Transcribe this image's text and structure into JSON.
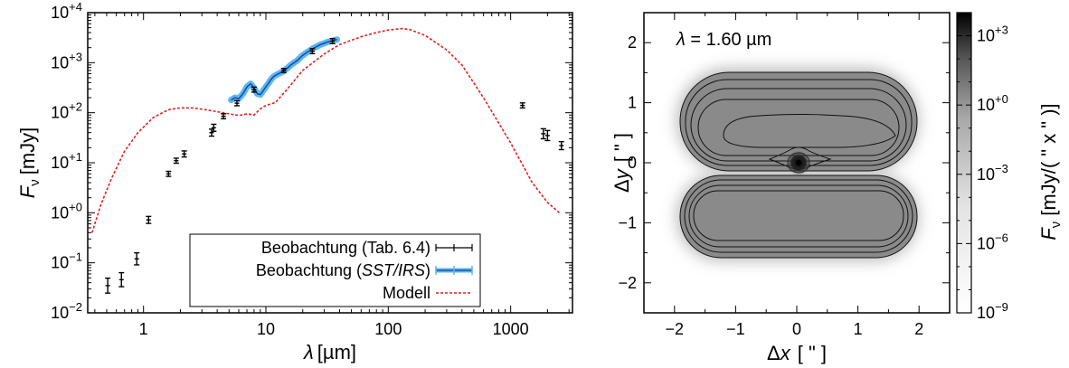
{
  "chart_data": [
    {
      "type": "line",
      "xlabel_symbol": "λ",
      "xlabel_unit": "[µm]",
      "ylabel_symbol": "F",
      "ylabel_sub": "ν",
      "ylabel_unit": "[mJy]",
      "x_scale": "log",
      "y_scale": "log",
      "xlim": [
        0.35,
        3200
      ],
      "ylim": [
        0.01,
        10000
      ],
      "x_ticks": [
        {
          "value": 1,
          "label": "1"
        },
        {
          "value": 10,
          "label": "10"
        },
        {
          "value": 100,
          "label": "100"
        },
        {
          "value": 1000,
          "label": "1000"
        }
      ],
      "y_ticks": [
        {
          "value": 0.01,
          "base": "10",
          "exp": "−2"
        },
        {
          "value": 0.1,
          "base": "10",
          "exp": "−1"
        },
        {
          "value": 1,
          "base": "10",
          "exp": "+0"
        },
        {
          "value": 10,
          "base": "10",
          "exp": "+1"
        },
        {
          "value": 100,
          "base": "10",
          "exp": "+2"
        },
        {
          "value": 1000,
          "base": "10",
          "exp": "+3"
        },
        {
          "value": 10000,
          "base": "10",
          "exp": "+4"
        }
      ],
      "legend_position": "bottom-right",
      "legend": [
        {
          "text": "Beobachtung  (Tab. 6.4)",
          "style": "black-errorbar"
        },
        {
          "text_pre": "Beobachtung (",
          "text_italic": "SST/IRS",
          "text_post": ")",
          "style": "blue-errorbar"
        },
        {
          "text": "Modell",
          "style": "red-dashed"
        }
      ],
      "series": [
        {
          "style": "black-errorbar",
          "points": [
            {
              "x": 0.51,
              "y": 0.035,
              "err": 0.15
            },
            {
              "x": 0.66,
              "y": 0.046,
              "err": 0.14
            },
            {
              "x": 0.88,
              "y": 0.12,
              "err": 0.12
            },
            {
              "x": 1.1,
              "y": 0.72,
              "err": 0.07
            },
            {
              "x": 1.6,
              "y": 6.0,
              "err": 0.05
            },
            {
              "x": 1.85,
              "y": 11,
              "err": 0.05
            },
            {
              "x": 2.15,
              "y": 15,
              "err": 0.06
            },
            {
              "x": 3.6,
              "y": 40,
              "err": 0.07
            },
            {
              "x": 3.75,
              "y": 50,
              "err": 0.07
            },
            {
              "x": 4.5,
              "y": 85,
              "err": 0.05
            },
            {
              "x": 5.8,
              "y": 155,
              "err": 0.05
            },
            {
              "x": 8.0,
              "y": 290,
              "err": 0.05
            },
            {
              "x": 14,
              "y": 700,
              "err": 0.04
            },
            {
              "x": 24,
              "y": 1700,
              "err": 0.05
            },
            {
              "x": 35,
              "y": 2700,
              "err": 0.05
            },
            {
              "x": 1250,
              "y": 140,
              "err": 0.05
            },
            {
              "x": 1850,
              "y": 38,
              "err": 0.1
            },
            {
              "x": 2000,
              "y": 35,
              "err": 0.1
            },
            {
              "x": 2600,
              "y": 22,
              "err": 0.08
            }
          ]
        },
        {
          "style": "blue-errorbar",
          "x": [
            5.2,
            5.6,
            6.0,
            6.5,
            7.0,
            7.5,
            8.0,
            8.5,
            9.0,
            9.5,
            10.0,
            10.5,
            11.0,
            11.5,
            12.0,
            13.0,
            14.0,
            15.0,
            16.0,
            17.0,
            18.0,
            19.0,
            20.0,
            22.0,
            24.0,
            26.0,
            28.0,
            30.0,
            32.0,
            35.0,
            38.0
          ],
          "y": [
            180,
            200,
            190,
            240,
            330,
            380,
            310,
            240,
            230,
            275,
            330,
            390,
            460,
            520,
            560,
            620,
            680,
            780,
            900,
            1000,
            1100,
            1250,
            1400,
            1650,
            1900,
            2100,
            2300,
            2450,
            2600,
            2750,
            2900
          ]
        },
        {
          "style": "red-dashed",
          "x": [
            0.38,
            0.45,
            0.55,
            0.7,
            0.9,
            1.2,
            1.6,
            2.0,
            2.5,
            3.0,
            4.0,
            5.0,
            6.0,
            7.0,
            8.0,
            9.0,
            10.0,
            11.0,
            12.0,
            15.0,
            20.0,
            30.0,
            40.0,
            60.0,
            80.0,
            100.0,
            130.0,
            150.0,
            200.0,
            300.0,
            400.0,
            600.0,
            1000.0,
            1500.0,
            2000.0,
            2500.0
          ],
          "y": [
            0.4,
            1.5,
            5.0,
            17,
            40,
            80,
            115,
            125,
            125,
            118,
            105,
            95,
            88,
            95,
            90,
            120,
            140,
            150,
            160,
            300,
            700,
            1500,
            2300,
            3300,
            4000,
            4500,
            4800,
            4600,
            3500,
            1800,
            900,
            200,
            25,
            4.0,
            1.6,
            1.0
          ]
        }
      ]
    },
    {
      "type": "heatmap",
      "annotation_symbol": "λ",
      "annotation_text": " = 1.60 µm",
      "xlabel_symbol": "Δ",
      "xlabel_var": "x",
      "xlabel_unit": "[ \" ]",
      "ylabel_symbol": "Δ",
      "ylabel_var": "y",
      "ylabel_unit": "[ \" ]",
      "xlim": [
        -2.5,
        2.5
      ],
      "ylim": [
        -2.5,
        2.5
      ],
      "x_ticks": [
        "−2",
        "−1",
        "0",
        "1",
        "2"
      ],
      "y_ticks": [
        "−2",
        "−1",
        "0",
        "1",
        "2"
      ],
      "x_tick_values": [
        -2,
        -1,
        0,
        1,
        2
      ],
      "y_tick_values": [
        -2,
        -1,
        0,
        1,
        2
      ],
      "colorbar": {
        "scale": "log",
        "range": [
          1e-09,
          10000
        ],
        "ticks": [
          {
            "value": 1e-09,
            "base": "10",
            "exp": "−9"
          },
          {
            "value": 1e-06,
            "base": "10",
            "exp": "−6"
          },
          {
            "value": 0.001,
            "base": "10",
            "exp": "−3"
          },
          {
            "value": 1,
            "base": "10",
            "exp": "+0"
          },
          {
            "value": 1000,
            "base": "10",
            "exp": "+3"
          }
        ],
        "label_symbol": "F",
        "label_sub": "ν",
        "label_unit": "[mJy/( \" x \" )]",
        "color_low": "#ffffff",
        "color_high": "#000000"
      }
    }
  ]
}
